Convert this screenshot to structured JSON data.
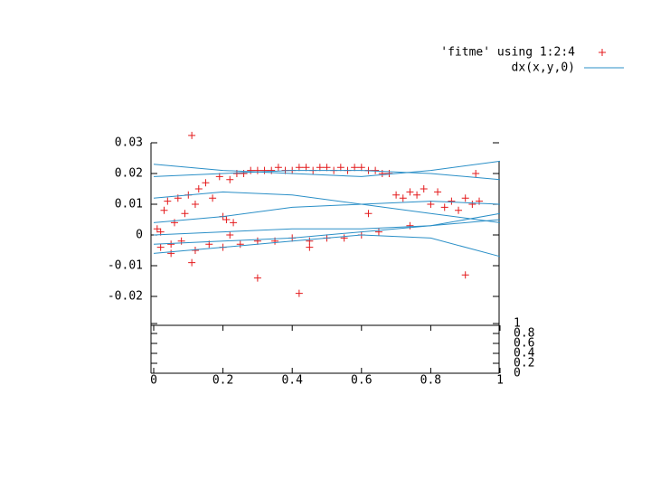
{
  "chart_data": {
    "type": "scatter3d",
    "xlim": [
      0,
      1
    ],
    "xticks": [
      0,
      0.2,
      0.4,
      0.6,
      0.8,
      1
    ],
    "ylim": [
      0,
      1
    ],
    "yticks": [
      0,
      0.2,
      0.4,
      0.6,
      0.8,
      1
    ],
    "zlim": [
      -0.03,
      0.03
    ],
    "zticks": [
      -0.02,
      -0.01,
      0,
      0.01,
      0.02,
      0.03
    ],
    "legend": "top-right",
    "series": [
      {
        "name": "'fitme' using 1:2:4",
        "color": "#e41a1c",
        "marker": "+",
        "x": [
          0.01,
          0.02,
          0.03,
          0.04,
          0.05,
          0.06,
          0.07,
          0.08,
          0.09,
          0.1,
          0.11,
          0.12,
          0.13,
          0.15,
          0.17,
          0.19,
          0.2,
          0.22,
          0.24,
          0.26,
          0.28,
          0.3,
          0.32,
          0.34,
          0.36,
          0.38,
          0.4,
          0.42,
          0.44,
          0.46,
          0.48,
          0.5,
          0.52,
          0.54,
          0.56,
          0.58,
          0.6,
          0.62,
          0.64,
          0.66,
          0.68,
          0.7,
          0.72,
          0.74,
          0.76,
          0.78,
          0.8,
          0.82,
          0.84,
          0.86,
          0.88,
          0.9,
          0.92,
          0.94,
          0.25,
          0.3,
          0.35,
          0.4,
          0.45,
          0.5,
          0.55,
          0.6,
          0.65,
          0.12,
          0.16,
          0.2,
          0.05,
          0.02,
          0.21,
          0.22,
          0.23,
          0.45,
          0.74,
          0.11,
          0.42,
          0.3,
          0.9,
          0.93,
          0.62
        ],
        "values": [
          0.002,
          -0.004,
          0.008,
          0.011,
          -0.006,
          0.004,
          0.012,
          -0.002,
          0.007,
          0.013,
          -0.009,
          0.01,
          0.015,
          0.017,
          0.012,
          0.019,
          0.006,
          0.018,
          0.02,
          0.02,
          0.021,
          0.021,
          0.021,
          0.021,
          0.022,
          0.021,
          0.021,
          0.022,
          0.022,
          0.021,
          0.022,
          0.022,
          0.021,
          0.022,
          0.021,
          0.022,
          0.022,
          0.021,
          0.021,
          0.02,
          0.02,
          0.013,
          0.012,
          0.014,
          0.013,
          0.015,
          0.01,
          0.014,
          0.009,
          0.011,
          0.008,
          0.012,
          0.01,
          0.011,
          -0.003,
          -0.002,
          -0.002,
          -0.001,
          -0.002,
          -0.001,
          -0.001,
          0.0,
          0.001,
          -0.005,
          -0.003,
          -0.004,
          -0.003,
          0.001,
          0.005,
          0.0,
          0.004,
          -0.004,
          0.003,
          0.0324,
          -0.019,
          -0.014,
          -0.013,
          0.02,
          0.007
        ]
      },
      {
        "name": "dx(x,y,0)",
        "color": "#2a8fc7",
        "x": [
          0,
          0.2,
          0.4,
          0.6,
          0.8,
          1
        ],
        "curves": [
          [
            0.023,
            0.021,
            0.02,
            0.019,
            0.021,
            0.024
          ],
          [
            0.019,
            0.02,
            0.021,
            0.021,
            0.02,
            0.018
          ],
          [
            0.012,
            0.014,
            0.013,
            0.01,
            0.007,
            0.004
          ],
          [
            0.004,
            0.006,
            0.009,
            0.01,
            0.011,
            0.01
          ],
          [
            0.0,
            0.001,
            0.002,
            0.002,
            0.003,
            0.005
          ],
          [
            -0.003,
            -0.002,
            -0.001,
            0.001,
            0.003,
            0.007
          ],
          [
            -0.006,
            -0.004,
            -0.002,
            0.0,
            -0.001,
            -0.007
          ]
        ]
      }
    ]
  }
}
